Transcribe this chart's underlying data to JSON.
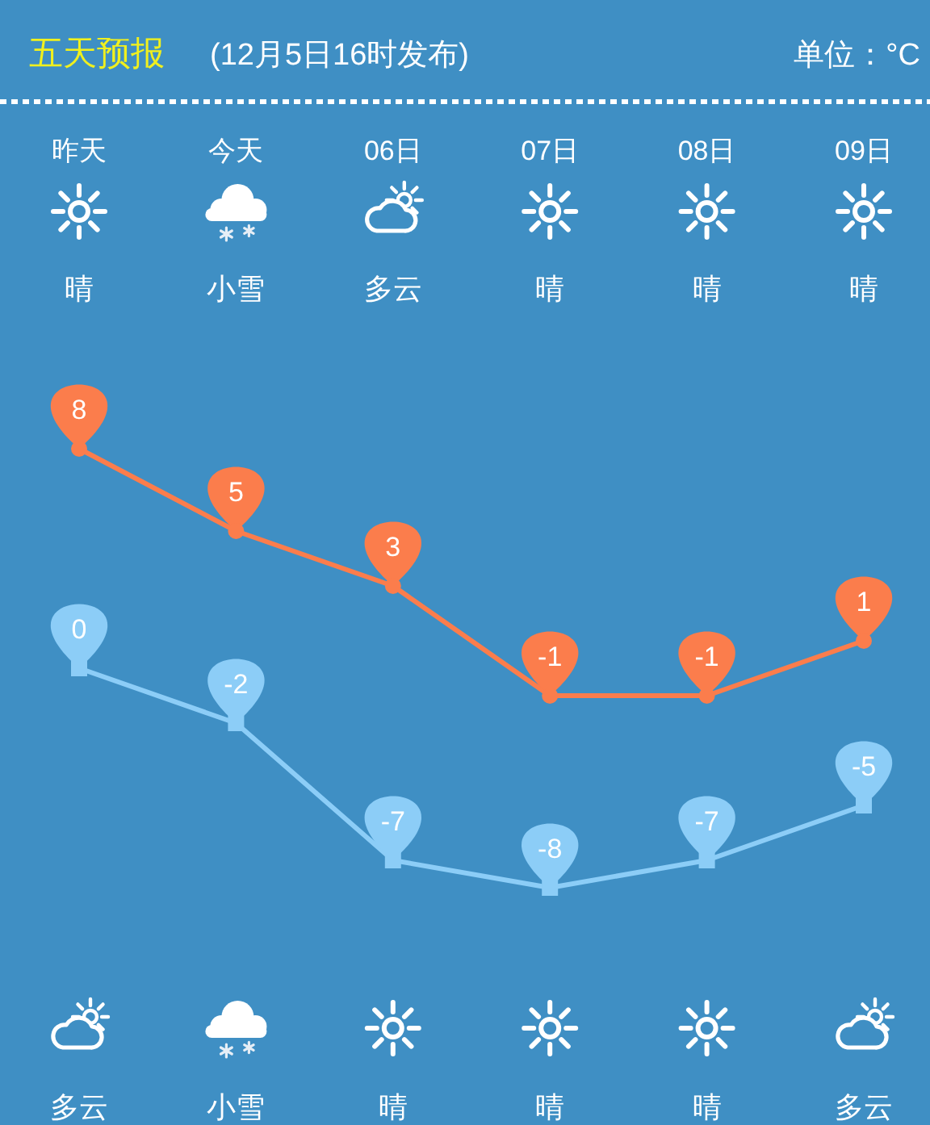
{
  "chart_data": {
    "type": "line",
    "title": "五天预报",
    "subtitle": "(12月5日16时发布)",
    "categories": [
      "昨天",
      "今天",
      "06日",
      "07日",
      "08日",
      "09日"
    ],
    "series": [
      {
        "color": "#fb7d4c",
        "marker": "circle",
        "values": [
          8,
          5,
          3,
          -1,
          -1,
          1
        ]
      },
      {
        "color": "#8ccdf7",
        "marker": "square",
        "values": [
          0,
          -2,
          -7,
          -8,
          -7,
          -5
        ]
      }
    ],
    "data_labels": true,
    "annotations": [
      "单位：°C",
      "晴",
      "小雪",
      "多云",
      "晴",
      "晴",
      "晴",
      "多云",
      "小雪",
      "晴",
      "晴",
      "晴",
      "多云"
    ]
  }
}
